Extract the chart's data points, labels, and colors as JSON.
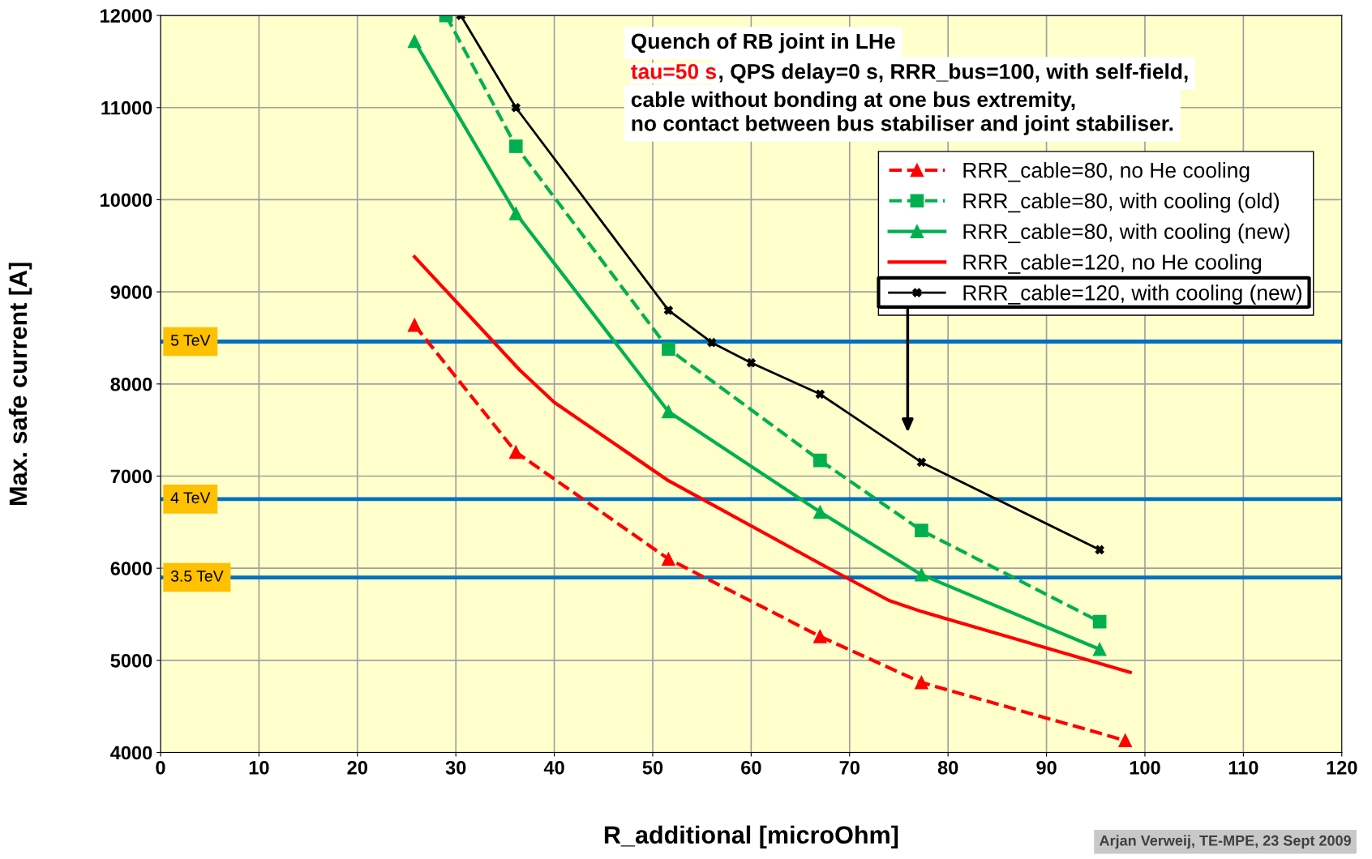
{
  "chart_data": {
    "type": "line",
    "xlabel": "R_additional [microOhm]",
    "ylabel": "Max. safe current [A]",
    "xlim": [
      0,
      120
    ],
    "xticks": [
      0,
      10,
      20,
      30,
      40,
      50,
      60,
      70,
      80,
      90,
      100,
      110,
      120
    ],
    "ylim": [
      4000,
      12000
    ],
    "yticks": [
      4000,
      5000,
      6000,
      7000,
      8000,
      9000,
      10000,
      11000,
      12000
    ],
    "grid": true,
    "legend": "top right",
    "series": [
      {
        "name": "RRR_cable=80, no He cooling",
        "color": "#ff0000",
        "marker": "triangle",
        "line_style": "dashed",
        "x": [
          25.8,
          36.1,
          51.6,
          67.0,
          77.3,
          98.0
        ],
        "values": [
          8640,
          7260,
          6100,
          5260,
          4760,
          4130
        ]
      },
      {
        "name": "RRR_cable=80, with cooling (old)",
        "color": "#00b050",
        "marker": "square",
        "line_style": "dashed",
        "x": [
          29.0,
          36.1,
          51.6,
          67.0,
          77.3,
          95.4
        ],
        "values": [
          12000,
          10580,
          8380,
          7170,
          6410,
          5420
        ]
      },
      {
        "name": "RRR_cable=80, with cooling (new)",
        "color": "#00b050",
        "marker": "triangle",
        "line_style": "solid",
        "x": [
          25.8,
          36.1,
          51.6,
          67.0,
          77.3,
          95.4
        ],
        "values": [
          11720,
          9850,
          7700,
          6610,
          5930,
          5120
        ]
      },
      {
        "name": "RRR_cable=120, no He cooling",
        "color": "#ff0000",
        "marker": "none",
        "line_style": "solid",
        "x": [
          25.8,
          36.5,
          40,
          51.6,
          67.0,
          74,
          77.3,
          98.5
        ],
        "values": [
          9380,
          8150,
          7800,
          6950,
          6050,
          5650,
          5530,
          4870
        ]
      },
      {
        "name": "RRR_cable=120, with cooling (new)",
        "color": "#000000",
        "marker": "cross",
        "line_style": "solid",
        "x": [
          30.5,
          36.1,
          51.6,
          56,
          60,
          67.0,
          77.3,
          95.4
        ],
        "values": [
          12000,
          11000,
          8800,
          8450,
          8230,
          7890,
          7150,
          6200
        ]
      }
    ],
    "ref_lines": [
      {
        "axis": "y",
        "value": 8460,
        "label": "5 TeV",
        "color": "#0070c0"
      },
      {
        "axis": "y",
        "value": 6750,
        "label": "4 TeV",
        "color": "#0070c0"
      },
      {
        "axis": "y",
        "value": 5900,
        "label": "3.5 TeV",
        "color": "#0070c0"
      }
    ],
    "annotations": [
      "Quench of RB joint in LHe",
      "tau=50 s",
      ", QPS delay=0 s, RRR_bus=100, with self-field,",
      "cable without bonding at one bus extremity,",
      "no contact between bus stabiliser and joint stabiliser.",
      "Arjan Verweij, TE-MPE, 23 Sept 2009"
    ]
  }
}
